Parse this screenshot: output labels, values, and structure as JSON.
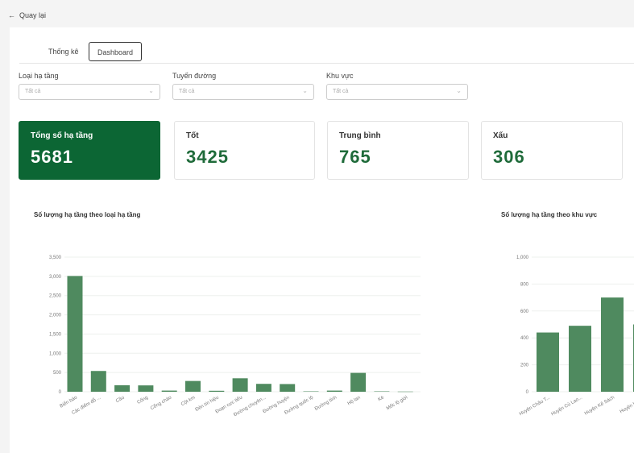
{
  "back_label": "Quay lại",
  "tabs": [
    {
      "label": "Thống kê"
    },
    {
      "label": "Dashboard",
      "active": true
    }
  ],
  "filters": [
    {
      "label": "Loại hạ tầng",
      "value": "Tất cả"
    },
    {
      "label": "Tuyến đường",
      "value": "Tất cả"
    },
    {
      "label": "Khu vực",
      "value": "Tất cả"
    }
  ],
  "cards": [
    {
      "title": "Tổng số hạ tầng",
      "value": "5681"
    },
    {
      "title": "Tốt",
      "value": "3425"
    },
    {
      "title": "Trung bình",
      "value": "765"
    },
    {
      "title": "Xấu",
      "value": "306"
    }
  ],
  "colors": {
    "primary": "#0c6634",
    "bar": "#4f8a5f"
  },
  "chart_data": [
    {
      "type": "bar",
      "title": "Số lượng hạ tầng theo loại hạ tầng",
      "categories": [
        "Biển báo",
        "Các điểm đỗ ...",
        "Cầu",
        "Cống",
        "Cổng chào",
        "Cột km",
        "Đèn tín hiệu",
        "Đoạn cực tiểu",
        "Đường chuyên...",
        "Đường huyện",
        "Đường quốc lộ",
        "Đường tỉnh",
        "Hộ lan",
        "Kè",
        "Mốc lộ giới"
      ],
      "values": [
        3010,
        540,
        170,
        165,
        30,
        280,
        25,
        350,
        205,
        200,
        10,
        30,
        490,
        10,
        5
      ],
      "ylim": [
        0,
        3500
      ],
      "yticks": [
        "0",
        "500",
        "1,000",
        "1,500",
        "2,000",
        "2,500",
        "3,000",
        "3,500"
      ],
      "grid": true
    },
    {
      "type": "bar",
      "title": "Số lượng hạ tầng theo khu vực",
      "categories": [
        "Huyện Châu T...",
        "Huyện Cù Lao...",
        "Huyện Kế Sách",
        "Huyện Long..."
      ],
      "values": [
        440,
        490,
        700,
        500
      ],
      "ylim": [
        0,
        1000
      ],
      "yticks": [
        "0",
        "200",
        "400",
        "600",
        "800",
        "1,000"
      ],
      "grid": true
    }
  ]
}
